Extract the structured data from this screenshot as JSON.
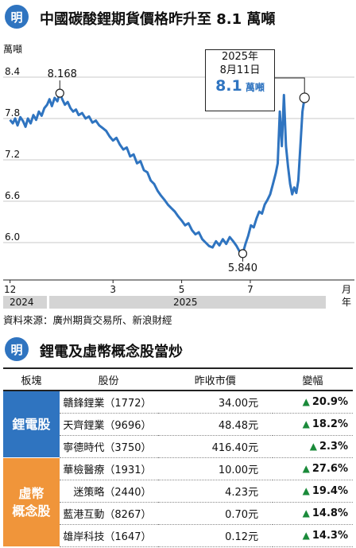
{
  "header": {
    "badge": "明",
    "title": "中國碳酸鋰期貨價格昨升至 8.1 萬噸"
  },
  "chart_data": {
    "type": "line",
    "unit_label": "萬噸",
    "y_ticks": [
      "8.4",
      "7.8",
      "7.2",
      "6.6",
      "6.0"
    ],
    "ylim": [
      5.55,
      8.55
    ],
    "x_ticks": [
      {
        "label": "12",
        "pos": 0
      },
      {
        "label": "3",
        "pos": 3
      },
      {
        "label": "5",
        "pos": 5
      },
      {
        "label": "7",
        "pos": 7
      }
    ],
    "x_axis_end_label": "月",
    "years": [
      {
        "label": "2024",
        "from": -0.2,
        "to": 0.15
      },
      {
        "label": "2025",
        "from": 0.15,
        "to": 9.3
      }
    ],
    "year_unit": "年",
    "xlim": [
      -0.2,
      9.2
    ],
    "series": [
      {
        "points": [
          [
            0.0,
            7.78
          ],
          [
            0.08,
            7.73
          ],
          [
            0.15,
            7.8
          ],
          [
            0.22,
            7.7
          ],
          [
            0.3,
            7.82
          ],
          [
            0.38,
            7.76
          ],
          [
            0.45,
            7.68
          ],
          [
            0.52,
            7.8
          ],
          [
            0.6,
            7.73
          ],
          [
            0.68,
            7.85
          ],
          [
            0.76,
            7.78
          ],
          [
            0.84,
            7.9
          ],
          [
            0.92,
            7.84
          ],
          [
            1.0,
            7.95
          ],
          [
            1.08,
            8.0
          ],
          [
            1.15,
            8.08
          ],
          [
            1.22,
            7.98
          ],
          [
            1.3,
            8.1
          ],
          [
            1.38,
            8.05
          ],
          [
            1.45,
            8.168
          ],
          [
            1.52,
            8.08
          ],
          [
            1.6,
            8.0
          ],
          [
            1.68,
            8.04
          ],
          [
            1.76,
            7.95
          ],
          [
            1.84,
            7.9
          ],
          [
            1.92,
            7.93
          ],
          [
            2.0,
            7.85
          ],
          [
            2.1,
            7.88
          ],
          [
            2.2,
            7.8
          ],
          [
            2.3,
            7.83
          ],
          [
            2.4,
            7.74
          ],
          [
            2.5,
            7.77
          ],
          [
            2.6,
            7.7
          ],
          [
            2.7,
            7.66
          ],
          [
            2.8,
            7.62
          ],
          [
            2.9,
            7.54
          ],
          [
            3.0,
            7.48
          ],
          [
            3.1,
            7.52
          ],
          [
            3.2,
            7.42
          ],
          [
            3.3,
            7.35
          ],
          [
            3.4,
            7.38
          ],
          [
            3.5,
            7.25
          ],
          [
            3.6,
            7.28
          ],
          [
            3.7,
            7.15
          ],
          [
            3.8,
            7.18
          ],
          [
            3.9,
            7.05
          ],
          [
            4.0,
            7.02
          ],
          [
            4.1,
            6.9
          ],
          [
            4.2,
            6.85
          ],
          [
            4.3,
            6.75
          ],
          [
            4.4,
            6.68
          ],
          [
            4.5,
            6.62
          ],
          [
            4.6,
            6.55
          ],
          [
            4.7,
            6.5
          ],
          [
            4.8,
            6.45
          ],
          [
            4.9,
            6.38
          ],
          [
            5.0,
            6.32
          ],
          [
            5.1,
            6.25
          ],
          [
            5.2,
            6.28
          ],
          [
            5.3,
            6.18
          ],
          [
            5.4,
            6.12
          ],
          [
            5.5,
            6.15
          ],
          [
            5.6,
            6.05
          ],
          [
            5.7,
            6.0
          ],
          [
            5.8,
            5.95
          ],
          [
            5.9,
            5.93
          ],
          [
            6.0,
            6.02
          ],
          [
            6.1,
            5.96
          ],
          [
            6.2,
            6.05
          ],
          [
            6.3,
            5.98
          ],
          [
            6.4,
            6.08
          ],
          [
            6.5,
            6.02
          ],
          [
            6.6,
            5.95
          ],
          [
            6.7,
            5.86
          ],
          [
            6.78,
            5.84
          ],
          [
            6.86,
            5.98
          ],
          [
            6.94,
            6.1
          ],
          [
            7.02,
            6.25
          ],
          [
            7.1,
            6.22
          ],
          [
            7.18,
            6.35
          ],
          [
            7.26,
            6.45
          ],
          [
            7.34,
            6.42
          ],
          [
            7.42,
            6.55
          ],
          [
            7.5,
            6.62
          ],
          [
            7.58,
            6.7
          ],
          [
            7.66,
            6.85
          ],
          [
            7.74,
            7.0
          ],
          [
            7.8,
            7.15
          ],
          [
            7.86,
            7.9
          ],
          [
            7.92,
            7.4
          ],
          [
            7.98,
            8.14
          ],
          [
            8.04,
            7.4
          ],
          [
            8.1,
            7.1
          ],
          [
            8.16,
            6.85
          ],
          [
            8.22,
            6.7
          ],
          [
            8.28,
            6.8
          ],
          [
            8.34,
            6.72
          ],
          [
            8.4,
            6.9
          ],
          [
            8.46,
            7.4
          ],
          [
            8.52,
            7.9
          ],
          [
            8.58,
            8.1
          ]
        ]
      }
    ],
    "annotations": [
      {
        "label": "8.168",
        "x": 1.45,
        "y": 8.168
      },
      {
        "label": "5.840",
        "x": 6.78,
        "y": 5.84
      }
    ],
    "callout": {
      "line1": "2025年",
      "line2": "8月11日",
      "value": "8.1",
      "unit": "萬噸",
      "x": 8.58,
      "y": 8.1
    },
    "source": "資料來源：廣州期貨交易所、新浪財經"
  },
  "section2": {
    "badge": "明",
    "title": "鋰電及虛幣概念股當炒"
  },
  "table": {
    "headers": [
      "板塊",
      "股份",
      "昨收市價",
      "變幅"
    ],
    "colors": {
      "group_lithium": "#2f74c0",
      "group_crypto": "#f0953a",
      "up": "#1a8a3a",
      "accent": "#2f74c0"
    },
    "groups": [
      {
        "label_lines": [
          "鋰電股"
        ],
        "rows": [
          {
            "name": "贛鋒鋰業（1772）",
            "price": "34.00元",
            "change": "20.9%"
          },
          {
            "name": "天齊鋰業（9696）",
            "price": "48.48元",
            "change": "18.2%"
          },
          {
            "name": "寧德時代（3750）",
            "price": "416.40元",
            "change": "2.3%"
          }
        ]
      },
      {
        "label_lines": [
          "虛幣",
          "概念股"
        ],
        "rows": [
          {
            "name": "華檢醫療（1931）",
            "price": "10.00元",
            "change": "27.6%"
          },
          {
            "name": "迷策略（2440）",
            "price": "4.23元",
            "change": "19.4%"
          },
          {
            "name": "藍港互動（8267）",
            "price": "0.70元",
            "change": "14.8%"
          },
          {
            "name": "雄岸科技（1647）",
            "price": "0.12元",
            "change": "14.3%"
          }
        ]
      }
    ]
  }
}
